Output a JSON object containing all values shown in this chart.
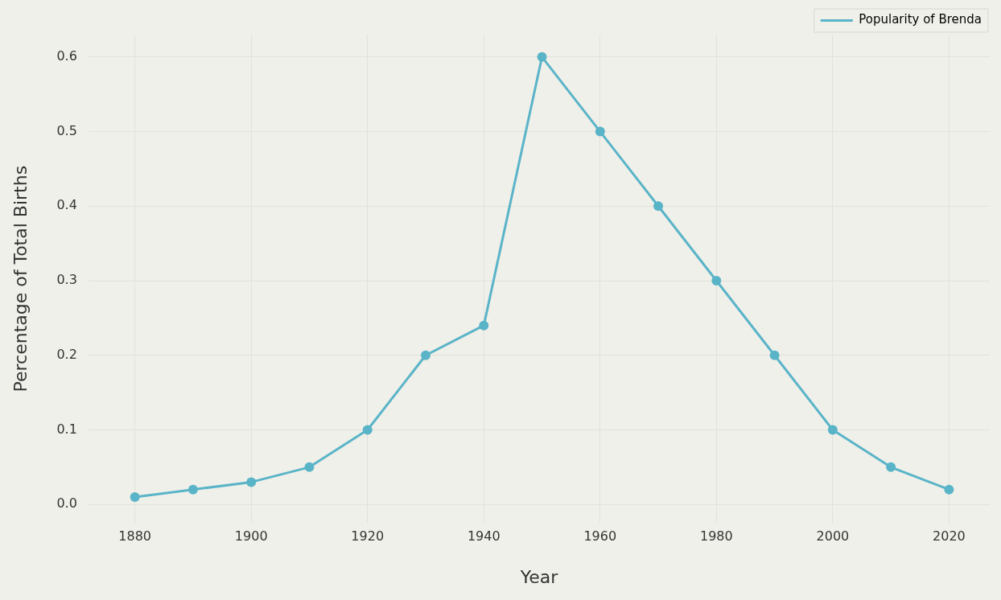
{
  "chart_data": {
    "type": "line",
    "xlabel": "Year",
    "ylabel": "Percentage of Total Births",
    "x": [
      1880,
      1890,
      1900,
      1910,
      1920,
      1930,
      1940,
      1950,
      1960,
      1970,
      1980,
      1990,
      2000,
      2010,
      2020
    ],
    "series": [
      {
        "name": "Popularity of Brenda",
        "color": "#5ab4c8",
        "values": [
          0.01,
          0.02,
          0.03,
          0.05,
          0.1,
          0.2,
          0.24,
          0.6,
          0.5,
          0.4,
          0.3,
          0.2,
          0.1,
          0.05,
          0.02
        ]
      }
    ],
    "xlim": [
      1872,
      2027
    ],
    "xticks": [
      1880,
      1900,
      1920,
      1940,
      1960,
      1980,
      2000,
      2020
    ],
    "ylim": [
      -0.025,
      0.63
    ],
    "yticks": [
      {
        "value": 0,
        "label": "0.0"
      },
      0.1,
      0.2,
      0.3,
      0.4,
      0.5,
      0.6
    ],
    "grid": true,
    "legend": "top right",
    "marker": "circle",
    "line_style": "solid"
  }
}
